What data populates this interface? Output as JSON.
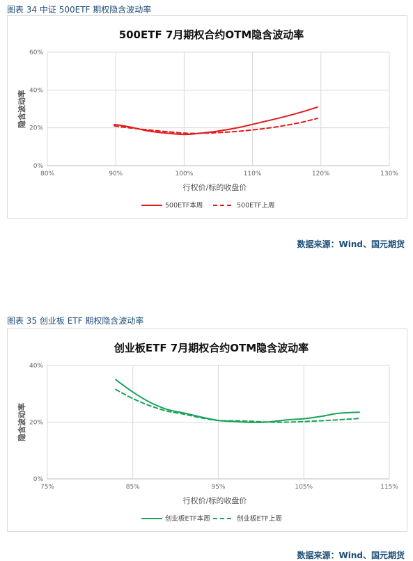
{
  "figures": [
    {
      "caption": "图表 34  中证 500ETF 期权隐含波动率",
      "source": "数据来源：Wind、国元期货"
    },
    {
      "caption": "图表 35  创业板 ETF 期权隐含波动率",
      "source": "数据来源：Wind、国元期货"
    }
  ],
  "chart_data": [
    {
      "type": "line",
      "title": "500ETF 7月期权合约OTM隐含波动率",
      "xlabel": "行权价/标的收盘价",
      "ylabel": "隐含波动率",
      "xlim": [
        80,
        130
      ],
      "ylim": [
        0,
        60
      ],
      "xticks": [
        80,
        90,
        100,
        110,
        120,
        130
      ],
      "yticks": [
        0,
        20,
        40,
        60
      ],
      "xtick_labels": [
        "80%",
        "90%",
        "100%",
        "110%",
        "120%",
        "130%"
      ],
      "ytick_labels": [
        "0%",
        "20%",
        "40%",
        "60%"
      ],
      "grid": true,
      "legend_position": "bottom",
      "series": [
        {
          "name": "500ETF本周",
          "color": "#e31a1c",
          "dash": false,
          "x": [
            89.8,
            92,
            95,
            98,
            100,
            102,
            105,
            108,
            111,
            114,
            117,
            119.5
          ],
          "y": [
            21.8,
            20.5,
            18.2,
            17.0,
            16.5,
            17.0,
            18.3,
            20.2,
            22.7,
            25.3,
            28.2,
            31.0
          ]
        },
        {
          "name": "500ETF上周",
          "color": "#e31a1c",
          "dash": true,
          "x": [
            89.8,
            92,
            95,
            98,
            100,
            102,
            105,
            108,
            111,
            114,
            117,
            119.5
          ],
          "y": [
            21.0,
            20.0,
            18.8,
            17.8,
            17.2,
            17.1,
            17.5,
            18.2,
            19.3,
            20.8,
            22.8,
            25.0
          ]
        }
      ]
    },
    {
      "type": "line",
      "title": "创业板ETF 7月期权合约OTM隐含波动率",
      "xlabel": "行权价/标的收盘价",
      "ylabel": "隐含波动率",
      "xlim": [
        75,
        115
      ],
      "ylim": [
        0,
        40
      ],
      "xticks": [
        75,
        85,
        95,
        105,
        115
      ],
      "yticks": [
        0,
        20,
        40
      ],
      "xtick_labels": [
        "75%",
        "85%",
        "95%",
        "105%",
        "115%"
      ],
      "ytick_labels": [
        "0%",
        "20%",
        "40%"
      ],
      "grid": true,
      "legend_position": "bottom",
      "series": [
        {
          "name": "创业板ETF本周",
          "color": "#1aa25a",
          "dash": false,
          "x": [
            83,
            85,
            87,
            89,
            91,
            93,
            95,
            97,
            99,
            101,
            103,
            105,
            107,
            109,
            111.5
          ],
          "y": [
            35.0,
            30.6,
            27.0,
            24.5,
            23.2,
            21.8,
            20.6,
            20.2,
            19.9,
            20.1,
            20.8,
            21.2,
            22.0,
            23.1,
            23.5
          ]
        },
        {
          "name": "创业板ETF上周",
          "color": "#1aa25a",
          "dash": true,
          "x": [
            83,
            85,
            87,
            89,
            91,
            93,
            95,
            97,
            99,
            101,
            103,
            105,
            107,
            109,
            111.5
          ],
          "y": [
            31.5,
            28.3,
            25.8,
            23.9,
            22.8,
            21.5,
            20.6,
            20.5,
            20.3,
            20.0,
            20.0,
            20.2,
            20.5,
            20.8,
            21.3
          ]
        }
      ]
    }
  ]
}
